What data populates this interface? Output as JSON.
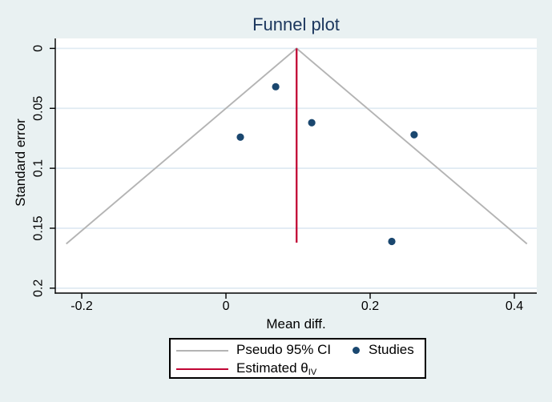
{
  "figure": {
    "title": "Funnel plot"
  },
  "axes": {
    "x_label": "Mean diff.",
    "y_label": "Standard error"
  },
  "legend": {
    "pseudo_ci": "Pseudo 95% CI",
    "studies": "Studies",
    "estimated_prefix": "Estimated θ",
    "estimated_sub": "IV"
  },
  "chart_data": {
    "type": "scatter",
    "title": "Funnel plot",
    "xlabel": "Mean diff.",
    "ylabel": "Standard error",
    "xlim": [
      -0.2367,
      0.4311
    ],
    "ylim_top_bottom": [
      -0.0083,
      0.2041
    ],
    "grid": true,
    "legend_position": "bottom",
    "x_ticks": [
      {
        "v": -0.2,
        "label": "-0.2"
      },
      {
        "v": 0.0,
        "label": "0"
      },
      {
        "v": 0.2,
        "label": "0.2"
      },
      {
        "v": 0.4,
        "label": "0.4"
      }
    ],
    "y_ticks": [
      {
        "v": 0.0,
        "label": "0"
      },
      {
        "v": 0.05,
        "label": "0.05"
      },
      {
        "v": 0.1,
        "label": "0.1"
      },
      {
        "v": 0.15,
        "label": "0.15"
      },
      {
        "v": 0.2,
        "label": "0.2"
      }
    ],
    "points": [
      {
        "x": 0.069,
        "se": 0.032
      },
      {
        "x": 0.02,
        "se": 0.074
      },
      {
        "x": 0.119,
        "se": 0.062
      },
      {
        "x": 0.261,
        "se": 0.072
      },
      {
        "x": 0.23,
        "se": 0.161
      }
    ],
    "estimate": {
      "theta": 0.098,
      "se_end": 0.162
    },
    "pseudo_ci": {
      "multiplier": 1.96,
      "se_max": 0.163
    },
    "colors": {
      "background": "#e9f1f2",
      "plot_bg": "#ffffff",
      "grid": "#dfeaf2",
      "funnel": "#b4b4b4",
      "estimate": "#c10534",
      "marker": "#1a476f",
      "title": "#1b365d",
      "axis_text": "#000000",
      "legend_border": "#000000",
      "legend_bg": "#ffffff"
    }
  }
}
